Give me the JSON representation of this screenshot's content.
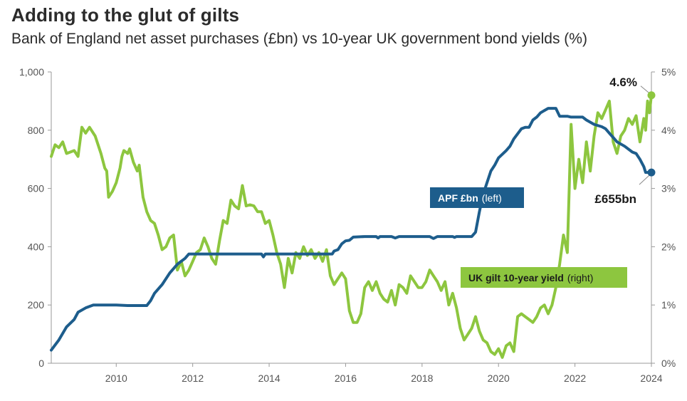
{
  "title": "Adding to the glut of gilts",
  "subtitle": "Bank of England net asset purchases (£bn) vs 10-year UK government bond yields (%)",
  "chart_data": {
    "type": "line",
    "title": "Adding to the glut of gilts",
    "xlim": [
      2008.3,
      2024.0
    ],
    "x_ticks": [
      2010,
      2012,
      2014,
      2016,
      2018,
      2020,
      2022,
      2024
    ],
    "x_tick_labels": [
      "2010",
      "2012",
      "2014",
      "2016",
      "2018",
      "2020",
      "2022",
      "2024"
    ],
    "left_axis": {
      "ylim": [
        0,
        1000
      ],
      "ticks": [
        0,
        200,
        400,
        600,
        800,
        1000
      ],
      "tick_labels": [
        "0",
        "200",
        "400",
        "600",
        "800",
        "1,000"
      ]
    },
    "right_axis": {
      "ylim": [
        0,
        5
      ],
      "ticks": [
        0,
        1,
        2,
        3,
        4,
        5
      ],
      "tick_labels": [
        "0%",
        "1%",
        "2%",
        "3%",
        "4%",
        "5%"
      ]
    },
    "series": [
      {
        "name": "APF £bn",
        "legend_main": "APF £bn",
        "legend_suffix": "(left)",
        "axis": "left",
        "color": "#1d5d8c",
        "points": [
          [
            2008.3,
            45
          ],
          [
            2008.5,
            80
          ],
          [
            2008.7,
            125
          ],
          [
            2008.9,
            150
          ],
          [
            2009.0,
            175
          ],
          [
            2009.2,
            190
          ],
          [
            2009.4,
            200
          ],
          [
            2009.7,
            200
          ],
          [
            2010.0,
            200
          ],
          [
            2010.3,
            198
          ],
          [
            2010.8,
            198
          ],
          [
            2010.9,
            215
          ],
          [
            2011.0,
            240
          ],
          [
            2011.2,
            270
          ],
          [
            2011.4,
            310
          ],
          [
            2011.6,
            340
          ],
          [
            2011.8,
            360
          ],
          [
            2011.9,
            375
          ],
          [
            2012.0,
            375
          ],
          [
            2013.0,
            375
          ],
          [
            2013.8,
            375
          ],
          [
            2013.85,
            365
          ],
          [
            2013.9,
            375
          ],
          [
            2014.5,
            375
          ],
          [
            2015.5,
            375
          ],
          [
            2015.65,
            375
          ],
          [
            2015.7,
            385
          ],
          [
            2015.8,
            390
          ],
          [
            2015.9,
            410
          ],
          [
            2016.0,
            420
          ],
          [
            2016.1,
            422
          ],
          [
            2016.2,
            433
          ],
          [
            2016.5,
            435
          ],
          [
            2016.8,
            435
          ],
          [
            2016.85,
            430
          ],
          [
            2016.9,
            435
          ],
          [
            2017.2,
            435
          ],
          [
            2017.3,
            430
          ],
          [
            2017.4,
            435
          ],
          [
            2018.0,
            435
          ],
          [
            2018.2,
            435
          ],
          [
            2018.3,
            428
          ],
          [
            2018.4,
            435
          ],
          [
            2018.8,
            435
          ],
          [
            2018.85,
            432
          ],
          [
            2018.9,
            435
          ],
          [
            2019.3,
            435
          ],
          [
            2019.4,
            450
          ],
          [
            2019.5,
            520
          ],
          [
            2019.6,
            580
          ],
          [
            2019.7,
            620
          ],
          [
            2019.8,
            660
          ],
          [
            2019.9,
            680
          ],
          [
            2020.0,
            705
          ],
          [
            2020.2,
            730
          ],
          [
            2020.3,
            745
          ],
          [
            2020.4,
            770
          ],
          [
            2020.6,
            805
          ],
          [
            2020.7,
            810
          ],
          [
            2020.8,
            810
          ],
          [
            2020.9,
            835
          ],
          [
            2021.0,
            845
          ],
          [
            2021.1,
            860
          ],
          [
            2021.3,
            875
          ],
          [
            2021.5,
            875
          ],
          [
            2021.6,
            848
          ],
          [
            2021.8,
            848
          ],
          [
            2021.9,
            845
          ],
          [
            2022.0,
            845
          ],
          [
            2022.2,
            845
          ],
          [
            2022.3,
            835
          ],
          [
            2022.5,
            820
          ],
          [
            2022.7,
            812
          ],
          [
            2022.8,
            805
          ],
          [
            2022.9,
            790
          ],
          [
            2023.0,
            775
          ],
          [
            2023.1,
            760
          ],
          [
            2023.3,
            745
          ],
          [
            2023.5,
            725
          ],
          [
            2023.6,
            720
          ],
          [
            2023.7,
            700
          ],
          [
            2023.8,
            675
          ],
          [
            2023.85,
            655
          ],
          [
            2024.0,
            655
          ]
        ],
        "end_label": "£655bn"
      },
      {
        "name": "UK gilt 10-year yield",
        "legend_main": "UK gilt 10-year yield",
        "legend_suffix": "(right)",
        "axis": "right",
        "color": "#8dc63f",
        "points": [
          [
            2008.3,
            3.55
          ],
          [
            2008.4,
            3.75
          ],
          [
            2008.5,
            3.7
          ],
          [
            2008.6,
            3.8
          ],
          [
            2008.7,
            3.6
          ],
          [
            2008.9,
            3.65
          ],
          [
            2009.0,
            3.55
          ],
          [
            2009.1,
            4.05
          ],
          [
            2009.2,
            3.95
          ],
          [
            2009.3,
            4.05
          ],
          [
            2009.45,
            3.9
          ],
          [
            2009.6,
            3.6
          ],
          [
            2009.7,
            3.35
          ],
          [
            2009.75,
            3.3
          ],
          [
            2009.8,
            2.85
          ],
          [
            2009.9,
            2.95
          ],
          [
            2010.0,
            3.1
          ],
          [
            2010.1,
            3.35
          ],
          [
            2010.15,
            3.55
          ],
          [
            2010.2,
            3.65
          ],
          [
            2010.3,
            3.6
          ],
          [
            2010.35,
            3.68
          ],
          [
            2010.45,
            3.45
          ],
          [
            2010.55,
            3.3
          ],
          [
            2010.6,
            3.4
          ],
          [
            2010.7,
            2.85
          ],
          [
            2010.8,
            2.6
          ],
          [
            2010.9,
            2.45
          ],
          [
            2011.0,
            2.4
          ],
          [
            2011.1,
            2.2
          ],
          [
            2011.2,
            1.95
          ],
          [
            2011.3,
            2.0
          ],
          [
            2011.4,
            2.15
          ],
          [
            2011.5,
            2.2
          ],
          [
            2011.6,
            1.6
          ],
          [
            2011.7,
            1.75
          ],
          [
            2011.8,
            1.5
          ],
          [
            2011.9,
            1.6
          ],
          [
            2012.0,
            1.75
          ],
          [
            2012.1,
            1.9
          ],
          [
            2012.2,
            1.95
          ],
          [
            2012.3,
            2.15
          ],
          [
            2012.4,
            2.0
          ],
          [
            2012.5,
            1.8
          ],
          [
            2012.6,
            1.7
          ],
          [
            2012.7,
            2.1
          ],
          [
            2012.8,
            2.45
          ],
          [
            2012.9,
            2.4
          ],
          [
            2013.0,
            2.8
          ],
          [
            2013.1,
            2.7
          ],
          [
            2013.2,
            2.65
          ],
          [
            2013.3,
            3.05
          ],
          [
            2013.4,
            2.7
          ],
          [
            2013.5,
            2.72
          ],
          [
            2013.6,
            2.7
          ],
          [
            2013.7,
            2.6
          ],
          [
            2013.8,
            2.6
          ],
          [
            2013.9,
            2.4
          ],
          [
            2014.0,
            2.45
          ],
          [
            2014.1,
            2.2
          ],
          [
            2014.2,
            1.9
          ],
          [
            2014.3,
            1.7
          ],
          [
            2014.4,
            1.3
          ],
          [
            2014.5,
            1.8
          ],
          [
            2014.6,
            1.55
          ],
          [
            2014.7,
            1.9
          ],
          [
            2014.8,
            1.8
          ],
          [
            2014.9,
            2.0
          ],
          [
            2015.0,
            1.85
          ],
          [
            2015.1,
            1.95
          ],
          [
            2015.2,
            1.8
          ],
          [
            2015.3,
            1.9
          ],
          [
            2015.4,
            1.75
          ],
          [
            2015.5,
            1.95
          ],
          [
            2015.6,
            1.5
          ],
          [
            2015.7,
            1.35
          ],
          [
            2015.8,
            1.45
          ],
          [
            2015.9,
            1.55
          ],
          [
            2016.0,
            1.45
          ],
          [
            2016.1,
            0.9
          ],
          [
            2016.2,
            0.7
          ],
          [
            2016.3,
            0.7
          ],
          [
            2016.4,
            0.85
          ],
          [
            2016.5,
            1.3
          ],
          [
            2016.6,
            1.4
          ],
          [
            2016.7,
            1.25
          ],
          [
            2016.8,
            1.4
          ],
          [
            2016.9,
            1.2
          ],
          [
            2017.0,
            1.1
          ],
          [
            2017.1,
            1.05
          ],
          [
            2017.2,
            1.25
          ],
          [
            2017.3,
            1.0
          ],
          [
            2017.4,
            1.35
          ],
          [
            2017.5,
            1.3
          ],
          [
            2017.6,
            1.2
          ],
          [
            2017.7,
            1.5
          ],
          [
            2017.8,
            1.4
          ],
          [
            2017.9,
            1.3
          ],
          [
            2018.0,
            1.3
          ],
          [
            2018.1,
            1.4
          ],
          [
            2018.2,
            1.6
          ],
          [
            2018.3,
            1.5
          ],
          [
            2018.4,
            1.4
          ],
          [
            2018.5,
            1.25
          ],
          [
            2018.6,
            1.4
          ],
          [
            2018.7,
            1.0
          ],
          [
            2018.8,
            1.2
          ],
          [
            2018.9,
            0.95
          ],
          [
            2019.0,
            0.6
          ],
          [
            2019.1,
            0.4
          ],
          [
            2019.2,
            0.5
          ],
          [
            2019.3,
            0.6
          ],
          [
            2019.4,
            0.8
          ],
          [
            2019.5,
            0.55
          ],
          [
            2019.6,
            0.4
          ],
          [
            2019.7,
            0.35
          ],
          [
            2019.8,
            0.2
          ],
          [
            2019.9,
            0.15
          ],
          [
            2020.0,
            0.25
          ],
          [
            2020.1,
            0.1
          ],
          [
            2020.2,
            0.3
          ],
          [
            2020.3,
            0.35
          ],
          [
            2020.4,
            0.2
          ],
          [
            2020.5,
            0.8
          ],
          [
            2020.6,
            0.85
          ],
          [
            2020.7,
            0.8
          ],
          [
            2020.8,
            0.75
          ],
          [
            2020.9,
            0.7
          ],
          [
            2021.0,
            0.8
          ],
          [
            2021.1,
            0.95
          ],
          [
            2021.2,
            1.0
          ],
          [
            2021.3,
            0.85
          ],
          [
            2021.4,
            1.0
          ],
          [
            2021.5,
            1.3
          ],
          [
            2021.6,
            1.7
          ],
          [
            2021.7,
            2.2
          ],
          [
            2021.8,
            1.9
          ],
          [
            2021.9,
            4.1
          ],
          [
            2022.0,
            3.0
          ],
          [
            2022.1,
            3.5
          ],
          [
            2022.2,
            3.1
          ],
          [
            2022.3,
            3.8
          ],
          [
            2022.4,
            3.3
          ],
          [
            2022.5,
            3.9
          ],
          [
            2022.6,
            4.3
          ],
          [
            2022.7,
            4.2
          ],
          [
            2022.8,
            4.35
          ],
          [
            2022.9,
            4.5
          ],
          [
            2023.0,
            3.8
          ],
          [
            2023.1,
            3.6
          ],
          [
            2023.2,
            3.9
          ],
          [
            2023.3,
            4.0
          ],
          [
            2023.4,
            4.2
          ],
          [
            2023.5,
            4.1
          ],
          [
            2023.6,
            4.25
          ],
          [
            2023.7,
            3.8
          ],
          [
            2023.8,
            4.2
          ],
          [
            2023.85,
            4.0
          ],
          [
            2023.9,
            4.5
          ],
          [
            2023.95,
            4.3
          ],
          [
            2024.0,
            4.6
          ]
        ],
        "end_label": "4.6%"
      }
    ]
  }
}
